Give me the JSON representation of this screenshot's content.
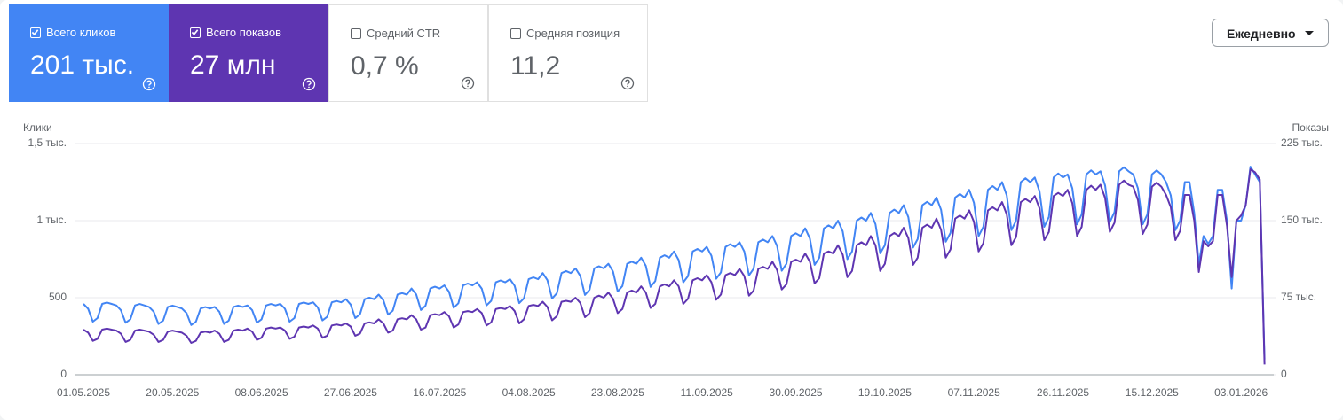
{
  "header": {
    "metrics": [
      {
        "label": "Всего кликов",
        "value": "201 тыс.",
        "checked": true,
        "color": "#4285f4"
      },
      {
        "label": "Всего показов",
        "value": "27 млн",
        "checked": true,
        "color": "#5e35b1"
      },
      {
        "label": "Средний CTR",
        "value": "0,7 %",
        "checked": false
      },
      {
        "label": "Средняя позиция",
        "value": "11,2",
        "checked": false
      }
    ],
    "dropdown": "Ежедневно"
  },
  "chart_data": {
    "type": "line",
    "y_label": "Клики",
    "y2_label": "Показы",
    "categories": [
      "01.05.2025",
      null,
      null,
      null,
      null,
      null,
      null,
      null,
      null,
      null,
      null,
      null,
      null,
      null,
      null,
      null,
      null,
      null,
      null,
      "20.05.2025",
      null,
      null,
      null,
      null,
      null,
      null,
      null,
      null,
      null,
      null,
      null,
      null,
      null,
      null,
      null,
      null,
      null,
      null,
      "08.06.2025",
      null,
      null,
      null,
      null,
      null,
      null,
      null,
      null,
      null,
      null,
      null,
      null,
      null,
      null,
      null,
      null,
      null,
      null,
      "27.06.2025",
      null,
      null,
      null,
      null,
      null,
      null,
      null,
      null,
      null,
      null,
      null,
      null,
      null,
      null,
      null,
      null,
      null,
      null,
      "16.07.2025",
      null,
      null,
      null,
      null,
      null,
      null,
      null,
      null,
      null,
      null,
      null,
      null,
      null,
      null,
      null,
      null,
      null,
      null,
      "04.08.2025",
      null,
      null,
      null,
      null,
      null,
      null,
      null,
      null,
      null,
      null,
      null,
      null,
      null,
      null,
      null,
      null,
      null,
      null,
      "23.08.2025",
      null,
      null,
      null,
      null,
      null,
      null,
      null,
      null,
      null,
      null,
      null,
      null,
      null,
      null,
      null,
      null,
      null,
      null,
      "11.09.2025",
      null,
      null,
      null,
      null,
      null,
      null,
      null,
      null,
      null,
      null,
      null,
      null,
      null,
      null,
      null,
      null,
      null,
      null,
      "30.09.2025",
      null,
      null,
      null,
      null,
      null,
      null,
      null,
      null,
      null,
      null,
      null,
      null,
      null,
      null,
      null,
      null,
      null,
      null,
      "19.10.2025",
      null,
      null,
      null,
      null,
      null,
      null,
      null,
      null,
      null,
      null,
      null,
      null,
      null,
      null,
      null,
      null,
      null,
      null,
      "07.11.2025",
      null,
      null,
      null,
      null,
      null,
      null,
      null,
      null,
      null,
      null,
      null,
      null,
      null,
      null,
      null,
      null,
      null,
      null,
      "26.11.2025",
      null,
      null,
      null,
      null,
      null,
      null,
      null,
      null,
      null,
      null,
      null,
      null,
      null,
      null,
      null,
      null,
      null,
      null,
      "15.12.2025",
      null,
      null,
      null,
      null,
      null,
      null,
      null,
      null,
      null,
      null,
      null,
      null,
      null,
      null,
      null,
      null,
      null,
      null,
      "03.01.2026",
      null,
      null,
      null,
      null,
      null
    ],
    "ylim": [
      0,
      1500
    ],
    "yticks": [
      0,
      500,
      {
        "value": 1000,
        "label": "1 тыс."
      },
      {
        "value": 1500,
        "label": "1,5 тыс."
      }
    ],
    "y2lim": [
      0,
      225000
    ],
    "y2ticks": [
      0,
      {
        "value": 75000,
        "label": "75 тыс."
      },
      {
        "value": 150000,
        "label": "150 тыс."
      },
      {
        "value": 225000,
        "label": "225 тыс."
      }
    ],
    "grid": true,
    "series": [
      {
        "color": "#4285f4",
        "axis": "y",
        "values": [
          460,
          428,
          345,
          368,
          460,
          469,
          460,
          450,
          419,
          338,
          360,
          450,
          459,
          450,
          440,
          409,
          330,
          352,
          440,
          449,
          440,
          430,
          400,
          323,
          344,
          430,
          439,
          430,
          440,
          409,
          330,
          352,
          440,
          449,
          440,
          450,
          419,
          338,
          360,
          450,
          459,
          450,
          460,
          428,
          345,
          368,
          460,
          469,
          460,
          470,
          437,
          353,
          376,
          470,
          479,
          470,
          490,
          456,
          368,
          392,
          490,
          500,
          490,
          520,
          484,
          390,
          416,
          520,
          530,
          520,
          560,
          521,
          420,
          448,
          560,
          571,
          560,
          580,
          539,
          435,
          464,
          580,
          592,
          580,
          600,
          558,
          450,
          480,
          600,
          612,
          600,
          620,
          577,
          465,
          496,
          620,
          632,
          620,
          660,
          614,
          495,
          528,
          660,
          673,
          660,
          690,
          642,
          518,
          552,
          690,
          704,
          690,
          720,
          670,
          540,
          576,
          720,
          734,
          720,
          760,
          707,
          570,
          608,
          760,
          775,
          760,
          800,
          744,
          600,
          640,
          800,
          816,
          800,
          830,
          772,
          623,
          664,
          830,
          847,
          830,
          860,
          800,
          645,
          688,
          860,
          877,
          860,
          900,
          837,
          675,
          720,
          900,
          918,
          900,
          950,
          884,
          713,
          760,
          950,
          969,
          950,
          1000,
          930,
          750,
          800,
          1000,
          1020,
          1000,
          1050,
          977,
          788,
          840,
          1050,
          1071,
          1050,
          1100,
          1023,
          825,
          880,
          1100,
          1122,
          1100,
          1150,
          1070,
          863,
          920,
          1150,
          1173,
          1150,
          1200,
          1116,
          900,
          960,
          1200,
          1224,
          1200,
          1250,
          1163,
          938,
          1000,
          1250,
          1275,
          1250,
          1280,
          1190,
          960,
          1024,
          1280,
          1306,
          1280,
          1300,
          1209,
          975,
          1040,
          1300,
          1326,
          1300,
          1320,
          1228,
          990,
          1056,
          1320,
          1346,
          1320,
          1300,
          1209,
          975,
          1040,
          1300,
          1326,
          1300,
          1250,
          1163,
          938,
          1000,
          1250,
          1250,
          1050,
          720,
          900,
          850,
          900,
          1200,
          1200,
          1000,
          560,
          1000,
          1000,
          1100,
          1350,
          1300,
          1250,
          100
        ]
      },
      {
        "color": "#5e35b1",
        "axis": "y2",
        "values": [
          44000,
          41000,
          33000,
          35000,
          44000,
          45000,
          44000,
          43000,
          40000,
          32000,
          34000,
          43000,
          44000,
          43000,
          42000,
          39000,
          32000,
          34000,
          42000,
          43000,
          42000,
          41000,
          38000,
          31000,
          33000,
          41000,
          42000,
          41000,
          43000,
          40000,
          32000,
          34000,
          43000,
          44000,
          43000,
          45000,
          42000,
          34000,
          36000,
          45000,
          46000,
          45000,
          46000,
          43000,
          35000,
          37000,
          46000,
          47000,
          46000,
          48000,
          45000,
          36000,
          38000,
          48000,
          49000,
          48000,
          50000,
          47000,
          38000,
          40000,
          50000,
          51000,
          50000,
          54000,
          50000,
          41000,
          43000,
          54000,
          55000,
          54000,
          58000,
          54000,
          44000,
          46000,
          58000,
          59000,
          58000,
          61000,
          57000,
          46000,
          49000,
          61000,
          62000,
          61000,
          64000,
          60000,
          48000,
          51000,
          64000,
          65000,
          64000,
          67000,
          62000,
          50000,
          54000,
          67000,
          68000,
          67000,
          71000,
          66000,
          53000,
          57000,
          71000,
          72000,
          71000,
          75000,
          70000,
          56000,
          60000,
          75000,
          77000,
          75000,
          80000,
          74000,
          60000,
          64000,
          80000,
          82000,
          80000,
          86000,
          80000,
          65000,
          69000,
          86000,
          88000,
          86000,
          92000,
          86000,
          69000,
          74000,
          92000,
          94000,
          92000,
          97000,
          90000,
          73000,
          78000,
          97000,
          99000,
          97000,
          103000,
          96000,
          77000,
          82000,
          103000,
          105000,
          103000,
          110000,
          102000,
          83000,
          88000,
          110000,
          112000,
          110000,
          118000,
          110000,
          89000,
          94000,
          118000,
          120000,
          118000,
          126000,
          117000,
          95000,
          101000,
          126000,
          129000,
          126000,
          135000,
          126000,
          101000,
          108000,
          135000,
          138000,
          135000,
          143000,
          133000,
          107000,
          114000,
          143000,
          146000,
          143000,
          152000,
          141000,
          114000,
          122000,
          152000,
          155000,
          152000,
          160000,
          149000,
          120000,
          128000,
          160000,
          163000,
          160000,
          168000,
          156000,
          126000,
          134000,
          168000,
          171000,
          168000,
          174000,
          162000,
          131000,
          139000,
          174000,
          177000,
          174000,
          180000,
          167000,
          135000,
          144000,
          180000,
          184000,
          180000,
          185000,
          172000,
          139000,
          148000,
          185000,
          189000,
          185000,
          183000,
          170000,
          137000,
          146000,
          183000,
          187000,
          183000,
          175000,
          163000,
          131000,
          140000,
          175000,
          175000,
          150000,
          100000,
          130000,
          125000,
          130000,
          175000,
          175000,
          145000,
          95000,
          150000,
          155000,
          165000,
          200000,
          197000,
          190000,
          10000
        ]
      }
    ]
  }
}
